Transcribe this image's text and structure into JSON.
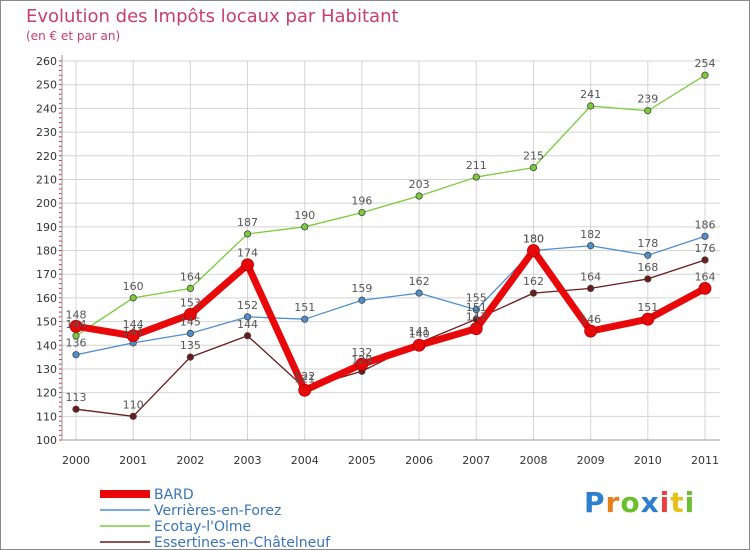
{
  "chart_data": {
    "type": "line",
    "title": "Evolution des Impôts locaux par Habitant",
    "subtitle": "(en € et par an)",
    "xlabel": "",
    "ylabel": "",
    "x": [
      "2000",
      "2001",
      "2002",
      "2003",
      "2004",
      "2005",
      "2006",
      "2007",
      "2008",
      "2009",
      "2010",
      "2011"
    ],
    "ylim": [
      100,
      260
    ],
    "yticks": [
      100,
      110,
      120,
      130,
      140,
      150,
      160,
      170,
      180,
      190,
      200,
      210,
      220,
      230,
      240,
      250,
      260
    ],
    "grid": true,
    "legend_position": "bottom-left",
    "series": [
      {
        "name": "BARD",
        "color": "#e8080a",
        "values": [
          148,
          144,
          153,
          174,
          121,
          132,
          140,
          147,
          180,
          146,
          151,
          164
        ]
      },
      {
        "name": "Verrières-en-Forez",
        "color": "#4f8fd0",
        "values": [
          136,
          141,
          145,
          152,
          151,
          159,
          162,
          155,
          180,
          182,
          178,
          186
        ]
      },
      {
        "name": "Ecotay-l'Olme",
        "color": "#7acc3a",
        "values": [
          144,
          160,
          164,
          187,
          190,
          196,
          203,
          211,
          215,
          241,
          239,
          254
        ]
      },
      {
        "name": "Essertines-en-Châtelneuf",
        "color": "#6a1a1a",
        "values": [
          113,
          110,
          135,
          144,
          122,
          129,
          141,
          151,
          162,
          164,
          168,
          176
        ]
      }
    ]
  },
  "logo": {
    "letters": [
      "P",
      "r",
      "o",
      "x",
      "i",
      "t",
      "i"
    ],
    "colors": [
      "#2f7fd0",
      "#e8801a",
      "#6cbf2c",
      "#2f7fd0",
      "#e84040",
      "#e8c01a",
      "#6cbf2c"
    ]
  }
}
